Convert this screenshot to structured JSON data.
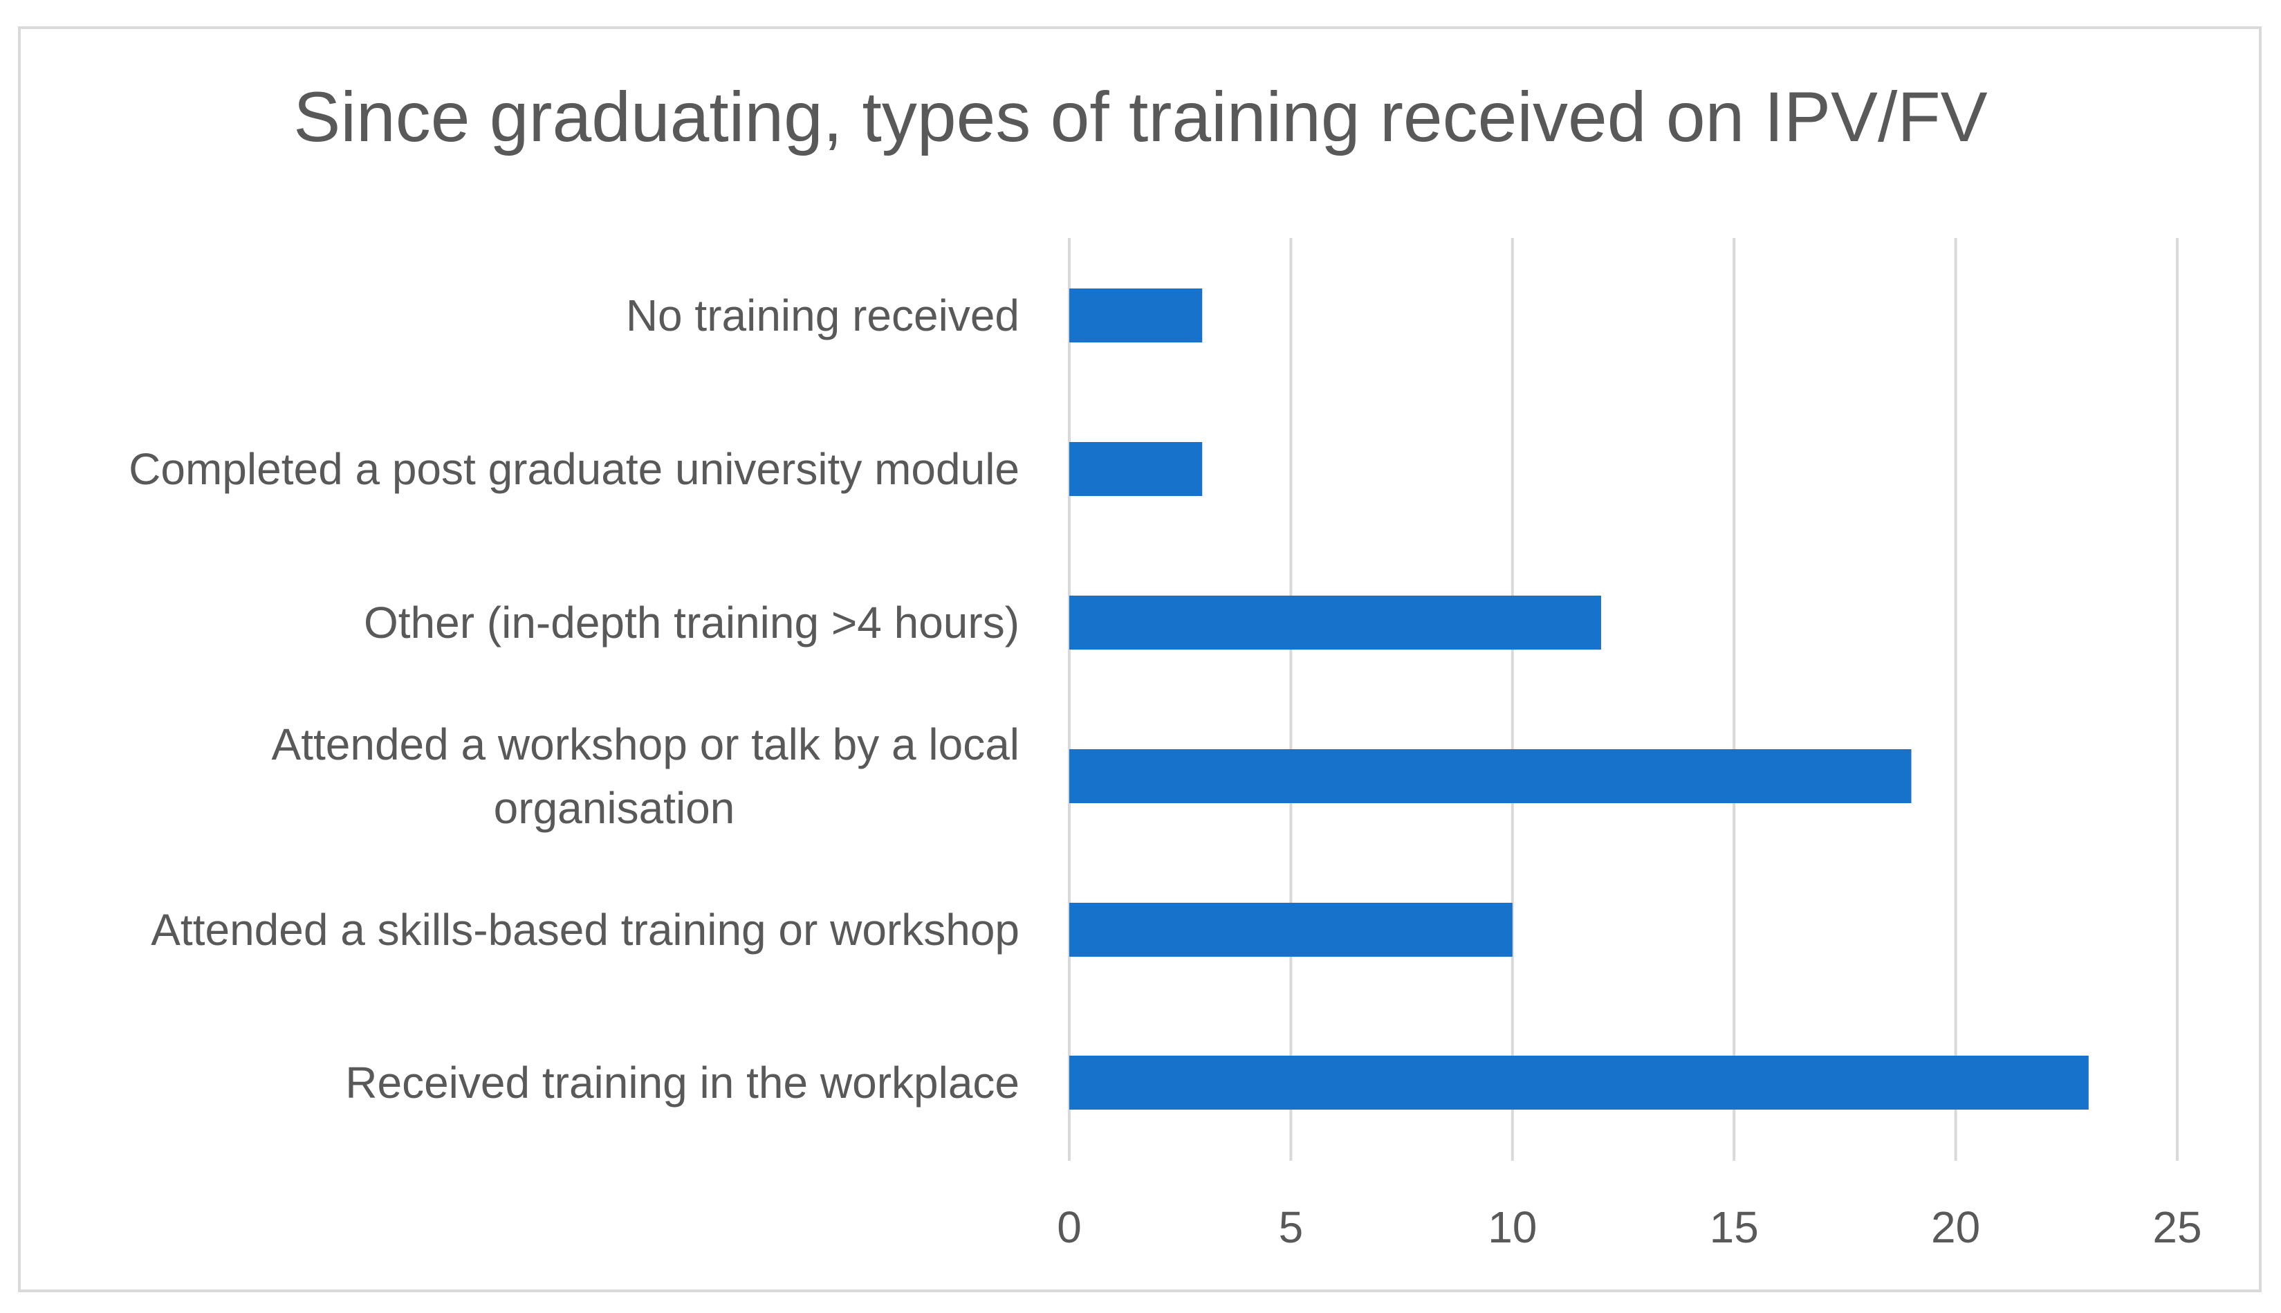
{
  "chart_data": {
    "type": "bar",
    "orientation": "horizontal",
    "title": "Since graduating, types of training received on IPV/FV",
    "xlabel": "",
    "ylabel": "",
    "categories": [
      "No training received",
      "Completed a post graduate university module",
      "Other (in-depth training >4 hours)",
      "Attended a workshop or talk by a local organisation",
      "Attended a skills-based training or workshop",
      "Received training in the workplace"
    ],
    "category_lines": [
      [
        "No training received"
      ],
      [
        "Completed a post graduate university module"
      ],
      [
        "Other (in-depth training >4 hours)"
      ],
      [
        "Attended a workshop or talk by a local",
        "organisation"
      ],
      [
        "Attended a skills-based training or workshop"
      ],
      [
        "Received training in the workplace"
      ]
    ],
    "values": [
      3,
      3,
      12,
      19,
      10,
      23
    ],
    "xlim": [
      0,
      25
    ],
    "xticks": [
      0,
      5,
      10,
      15,
      20,
      25
    ],
    "grid": true,
    "legend": "none",
    "bar_color": "#1772cc",
    "grid_color": "#d9d9d9",
    "text_color": "#595959"
  }
}
